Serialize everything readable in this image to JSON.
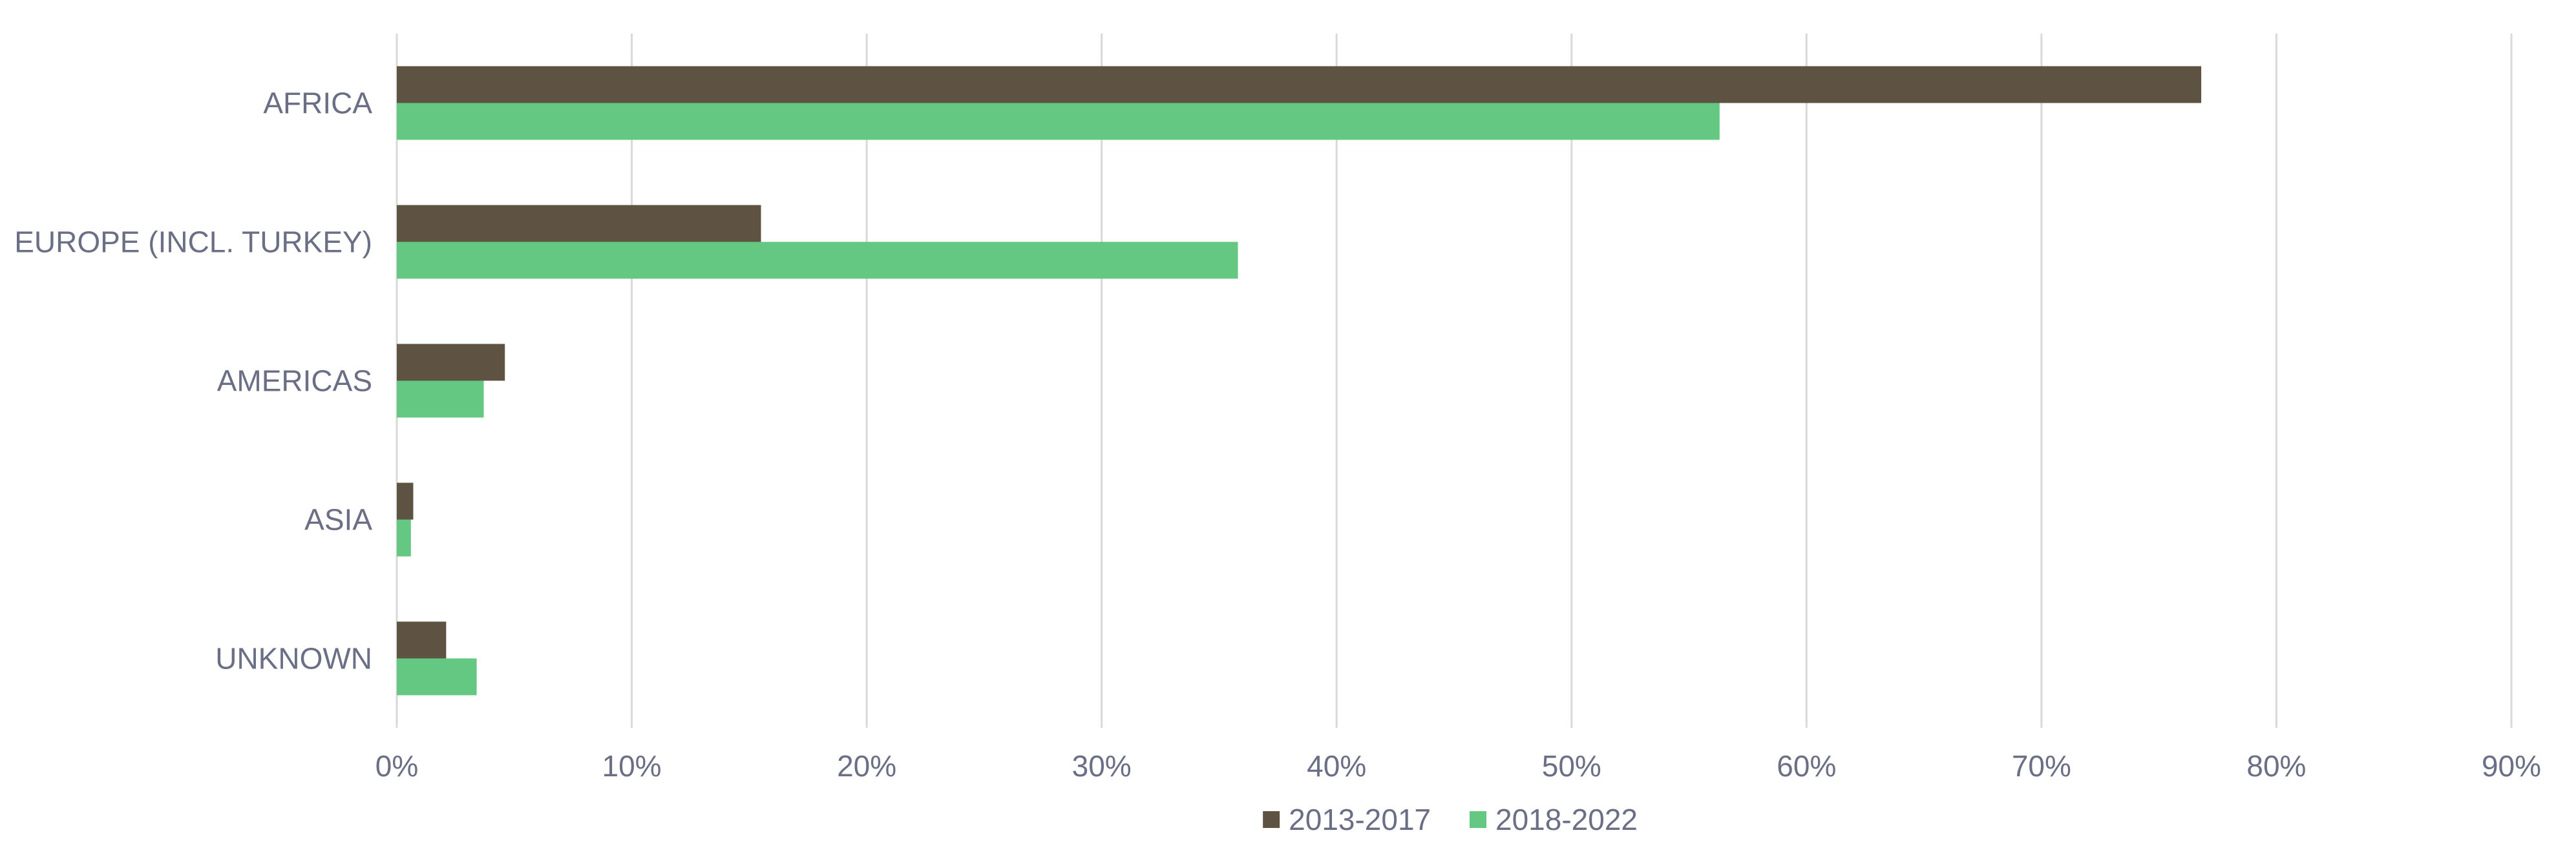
{
  "chart_data": {
    "type": "bar",
    "orientation": "horizontal",
    "categories": [
      "AFRICA",
      "EUROPE (INCL. TURKEY)",
      "AMERICAS",
      "ASIA",
      "UNKNOWN"
    ],
    "series": [
      {
        "name": "2013-2017",
        "color": "#5e5242",
        "values": [
          76.8,
          15.5,
          4.6,
          0.7,
          2.1
        ]
      },
      {
        "name": "2018-2022",
        "color": "#64c883",
        "values": [
          56.3,
          35.8,
          3.7,
          0.6,
          3.4
        ]
      }
    ],
    "x_ticks": [
      "0%",
      "10%",
      "20%",
      "30%",
      "40%",
      "50%",
      "60%",
      "70%",
      "80%",
      "90%"
    ],
    "xlim": [
      0,
      90
    ],
    "title": "",
    "xlabel": "",
    "ylabel": "",
    "grid": "vertical",
    "legend_position": "bottom-center",
    "colors": {
      "gridline": "#d9d9d9",
      "text": "#6b6f86"
    }
  }
}
